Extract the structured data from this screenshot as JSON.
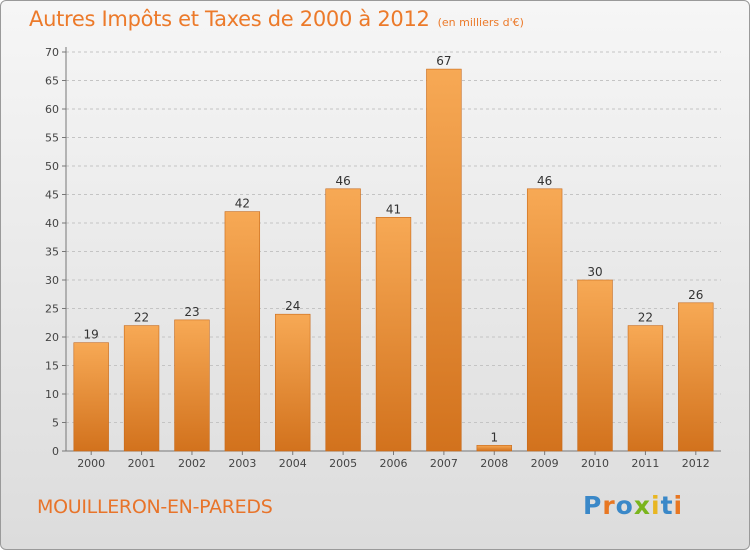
{
  "header": {
    "title": "Autres Impôts et Taxes de 2000 à 2012",
    "subtitle": "(en milliers d'€)"
  },
  "footer": {
    "place": "MOUILLERON-EN-PAREDS",
    "brand": "Proxiti"
  },
  "colors": {
    "bar_top": "#f7a955",
    "bar_bottom": "#d2721d",
    "title": "#ec7a2a",
    "brand_letters": [
      "#3a88c8",
      "#e87722",
      "#3a88c8",
      "#7ab51d",
      "#e8b622",
      "#3a88c8",
      "#e87722"
    ]
  },
  "chart_data": {
    "type": "bar",
    "categories": [
      "2000",
      "2001",
      "2002",
      "2003",
      "2004",
      "2005",
      "2006",
      "2007",
      "2008",
      "2009",
      "2010",
      "2011",
      "2012"
    ],
    "values": [
      19,
      22,
      23,
      42,
      24,
      46,
      41,
      67,
      1,
      46,
      30,
      22,
      26
    ],
    "title": "Autres Impôts et Taxes de 2000 à 2012",
    "subtitle": "(en milliers d'€)",
    "xlabel": "",
    "ylabel": "",
    "ylim": [
      0,
      70
    ],
    "yticks": [
      0,
      5,
      10,
      15,
      20,
      25,
      30,
      35,
      40,
      45,
      50,
      55,
      60,
      65,
      70
    ],
    "grid": true,
    "legend": "none"
  }
}
